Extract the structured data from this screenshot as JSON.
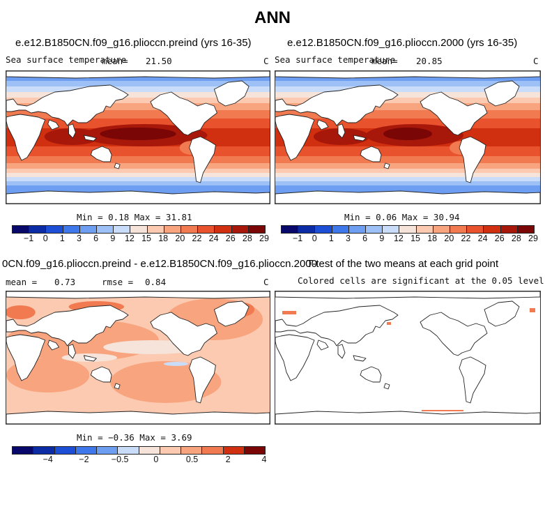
{
  "chart_data": {
    "type": "heatmap",
    "title": "ANN",
    "panels": [
      {
        "title": "e.e12.B1850CN.f09_g16.plioccn.preind (yrs 16-35)",
        "variable": "Sea surface temperature",
        "stat_label": "mean=",
        "stat_value": "21.50",
        "units": "C",
        "min_max_text": "Min =    0.18 Max =   31.81",
        "min": 0.18,
        "max": 31.81,
        "colorbar_ticks": [
          "−1",
          "0",
          "1",
          "3",
          "6",
          "9",
          "12",
          "15",
          "18",
          "20",
          "22",
          "24",
          "26",
          "28",
          "29"
        ]
      },
      {
        "title": "e.e12.B1850CN.f09_g16.plioccn.2000 (yrs 16-35)",
        "variable": "Sea surface temperature",
        "stat_label": "mean=",
        "stat_value": "20.85",
        "units": "C",
        "min_max_text": "Min =    0.06 Max =   30.94",
        "min": 0.06,
        "max": 30.94,
        "colorbar_ticks": [
          "−1",
          "0",
          "1",
          "3",
          "6",
          "9",
          "12",
          "15",
          "18",
          "20",
          "22",
          "24",
          "26",
          "28",
          "29"
        ]
      },
      {
        "title": "0CN.f09_g16.plioccn.preind - e.e12.B1850CN.f09_g16.plioccn.2000",
        "stat_label": "mean =",
        "stat_value": "0.73",
        "rmse_label": "rmse =",
        "rmse_value": "0.84",
        "units": "C",
        "min_max_text": "Min =  −0.36 Max =    3.69",
        "min": -0.36,
        "max": 3.69,
        "colorbar_ticks": [
          "−4",
          "−2",
          "−0.5",
          "0",
          "0.5",
          "2",
          "4"
        ]
      },
      {
        "title": "T-test of the two means at each grid point",
        "subtitle": "Colored cells are significant at the 0.05 level"
      }
    ]
  },
  "colors": {
    "sst_scale": [
      "#08086b",
      "#0c2ca6",
      "#1d4fd6",
      "#3f78ea",
      "#6d9ef2",
      "#9dc0f7",
      "#c9dcfa",
      "#f6e4da",
      "#fbcab0",
      "#f8a47e",
      "#f27a51",
      "#e8532e",
      "#d02f10",
      "#a8180a",
      "#7a0606"
    ],
    "diff_scale": [
      "#08086b",
      "#0c2ca6",
      "#1d4fd6",
      "#3f78ea",
      "#6d9ef2",
      "#c9dcfa",
      "#f6e4da",
      "#fbcab0",
      "#f8a47e",
      "#f27a51",
      "#d02f10",
      "#7a0606"
    ],
    "land": "#ffffff",
    "coast": "#222222"
  }
}
